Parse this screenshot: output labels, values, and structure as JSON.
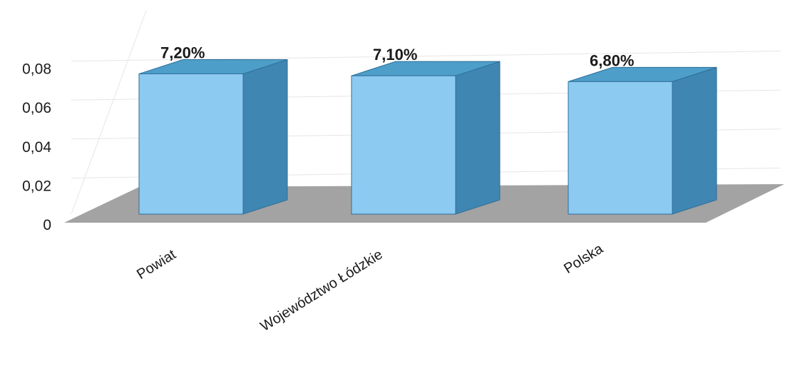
{
  "chart_data": {
    "type": "bar",
    "style": "3d-column",
    "categories": [
      "Powiat",
      "Województwo Łódzkie",
      "Polska"
    ],
    "values": [
      0.072,
      0.071,
      0.068
    ],
    "data_labels": [
      "7,20%",
      "7,10%",
      "6,80%"
    ],
    "title": "",
    "xlabel": "",
    "ylabel": "",
    "ylim": [
      0,
      0.08
    ],
    "yticks": [
      "0",
      "0,02",
      "0,04",
      "0,06",
      "0,08"
    ],
    "grid": true,
    "legend": "none",
    "colors": {
      "front": "#8ccaf2",
      "top": "#4d9ec9",
      "side": "#3f86b2",
      "edge": "#2f6f99",
      "floor": "#a3a3a3",
      "grid": "#e6e6e6"
    }
  }
}
